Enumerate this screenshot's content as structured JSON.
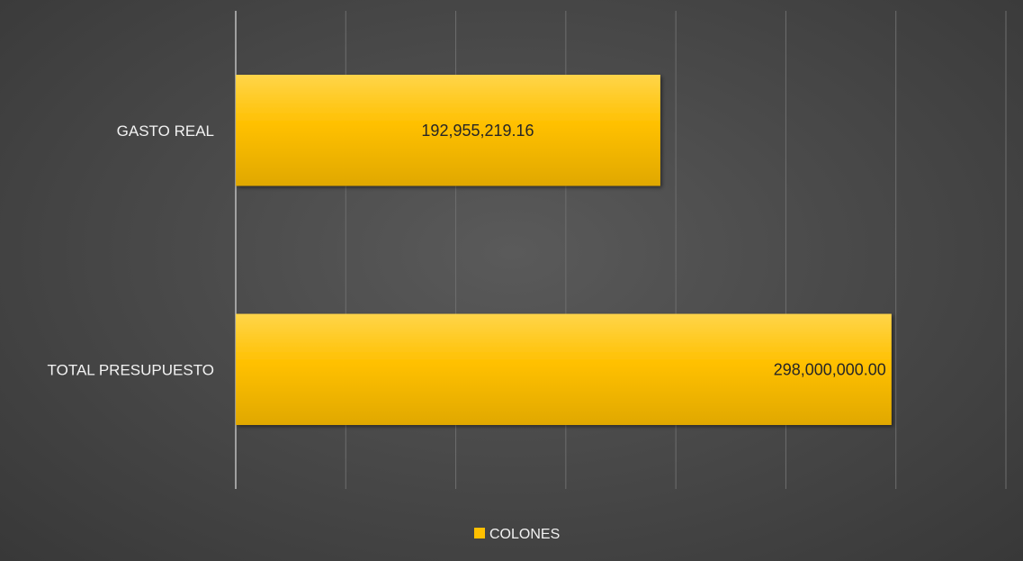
{
  "chart_data": {
    "type": "bar",
    "orientation": "horizontal",
    "categories": [
      "GASTO REAL",
      "TOTAL PRESUPUESTO"
    ],
    "series": [
      {
        "name": "COLONES",
        "values": [
          192955219.16,
          298000000.0
        ]
      }
    ],
    "data_labels": [
      "192,955,219.16",
      "298,000,000.00"
    ],
    "xlim": [
      0,
      350000000
    ],
    "x_gridline_step": 50000000,
    "grid": true,
    "legend_position": "bottom",
    "colors": {
      "bar": "#ffc000",
      "gridline": "#6e6e6e",
      "axis": "#bfbfbf",
      "background": "#4a4a4a"
    }
  }
}
